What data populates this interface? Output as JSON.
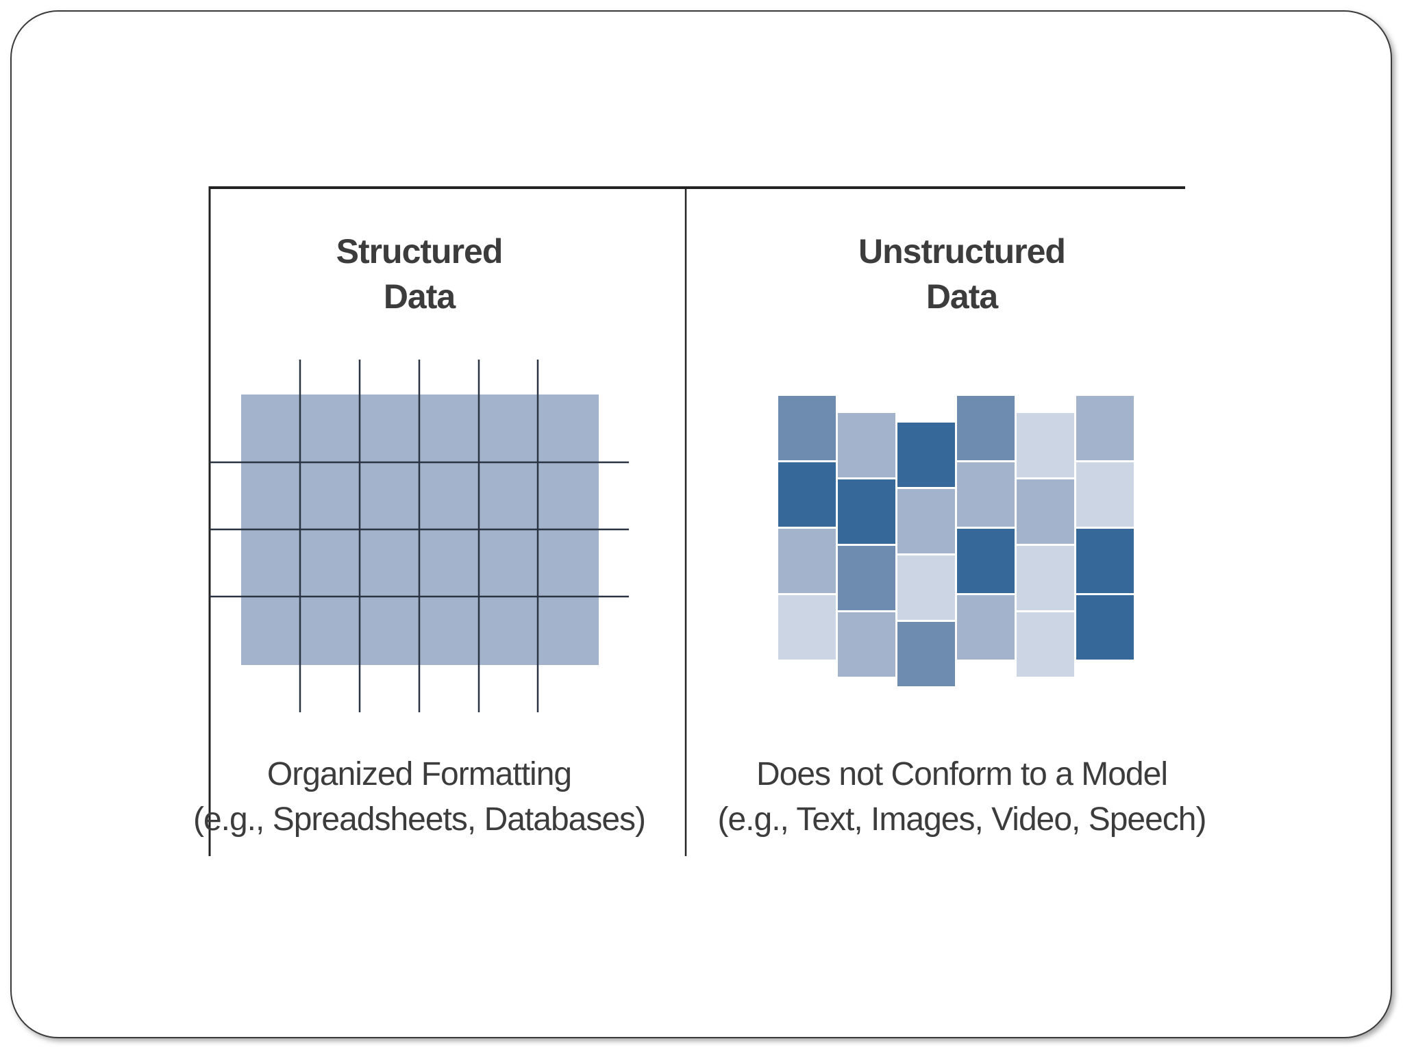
{
  "structured": {
    "title_line1": "Structured",
    "title_line2": "Data",
    "caption_line1": "Organized Formatting",
    "caption_line2": "(e.g., Spreadsheets, Databases)",
    "fill_color": "#a3b3cc",
    "grid_line_color": "#2a3342"
  },
  "unstructured": {
    "title_line1": "Unstructured",
    "title_line2": "Data",
    "caption_line1": "Does not Conform to a Model",
    "caption_line2": "(e.g., Text, Images, Video, Speech)",
    "palette": {
      "dark": "#36699a",
      "medium": "#6e8bb0",
      "light": "#a3b3cc",
      "pale": "#cbd5e3"
    },
    "columns": [
      [
        "medium",
        "dark",
        "light",
        "pale"
      ],
      [
        "light",
        "dark",
        "medium",
        "light"
      ],
      [
        "dark",
        "light",
        "pale",
        "medium"
      ],
      [
        "medium",
        "light",
        "dark",
        "light"
      ],
      [
        "pale",
        "light",
        "pale",
        "pale"
      ],
      [
        "light",
        "pale",
        "dark",
        "dark"
      ]
    ]
  },
  "colors": {
    "frame_border": "#3a3a3a",
    "divider": "#222222",
    "text": "#3c3c3c"
  }
}
